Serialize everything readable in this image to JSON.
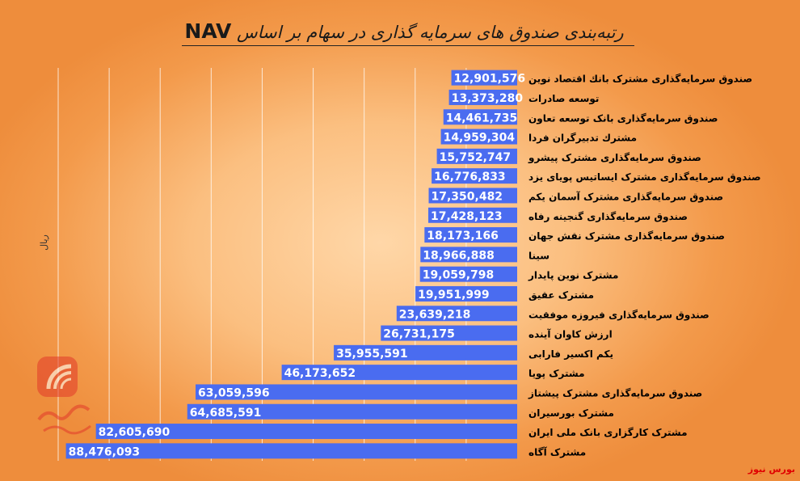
{
  "title": "رتبه‌بندی صندوق های سرمایه گذاری در سهام بر اساس",
  "title_tag": "NAV",
  "unit_label": "ریال",
  "brand": "بورس نیوز",
  "colors": {
    "bar": "#4a6cf0",
    "bar_text": "#ffffff",
    "label_text": "#000000",
    "brand": "#e00000"
  },
  "chart_data": {
    "type": "bar",
    "orientation": "horizontal",
    "categories": [
      "صندوق سرمایه‌گذاری مشترک بانك اقتصاد نوین",
      "توسعه صادرات",
      "صندوق سرمایه‌گذاری بانک توسعه تعاون",
      "مشترك تدبيرگران فردا",
      "صندوق سرمایه‌گذاری مشترک پیشرو",
      "صندوق سرمایه‌گذاری مشترک ایساتیس پویای یزد",
      "صندوق سرمایه‌گذاری مشترک آسمان یکم",
      "صندوق سرمایه‌گذاری گنجینه رفاه",
      "صندوق سرمایه‌گذاری مشترک نقش جهان",
      "سینا",
      "مشترک نوین پایدار",
      "مشترک عقیق",
      "صندوق سرمایه‌گذاری فیروزه موفقیت",
      "ارزش کاوان آینده",
      "یکم اکسیر فارابی",
      "مشترک پویا",
      "صندوق سرمایه‌گذاری مشترک پیشتاز",
      "مشترک بورسیران",
      "مشترک کارگزاری بانک ملی ایران",
      "مشترک آگاه"
    ],
    "values": [
      12901576,
      13373280,
      14461735,
      14959304,
      15752747,
      16776833,
      17350482,
      17428123,
      18173166,
      18966888,
      19059798,
      19951999,
      23639218,
      26731175,
      35955591,
      46173652,
      63059596,
      64685591,
      82605690,
      88476093
    ],
    "value_labels": [
      "12,901,576",
      "13,373,280",
      "14,461,735",
      "14,959,304",
      "15,752,747",
      "16,776,833",
      "17,350,482",
      "17,428,123",
      "18,173,166",
      "18,966,888",
      "19,059,798",
      "19,951,999",
      "23,639,218",
      "26,731,175",
      "35,955,591",
      "46,173,652",
      "63,059,596",
      "64,685,591",
      "82,605,690",
      "88,476,093"
    ],
    "xlim": [
      0,
      90000000
    ],
    "direction": "right-to-left",
    "gridlines": true,
    "legend": "none"
  }
}
